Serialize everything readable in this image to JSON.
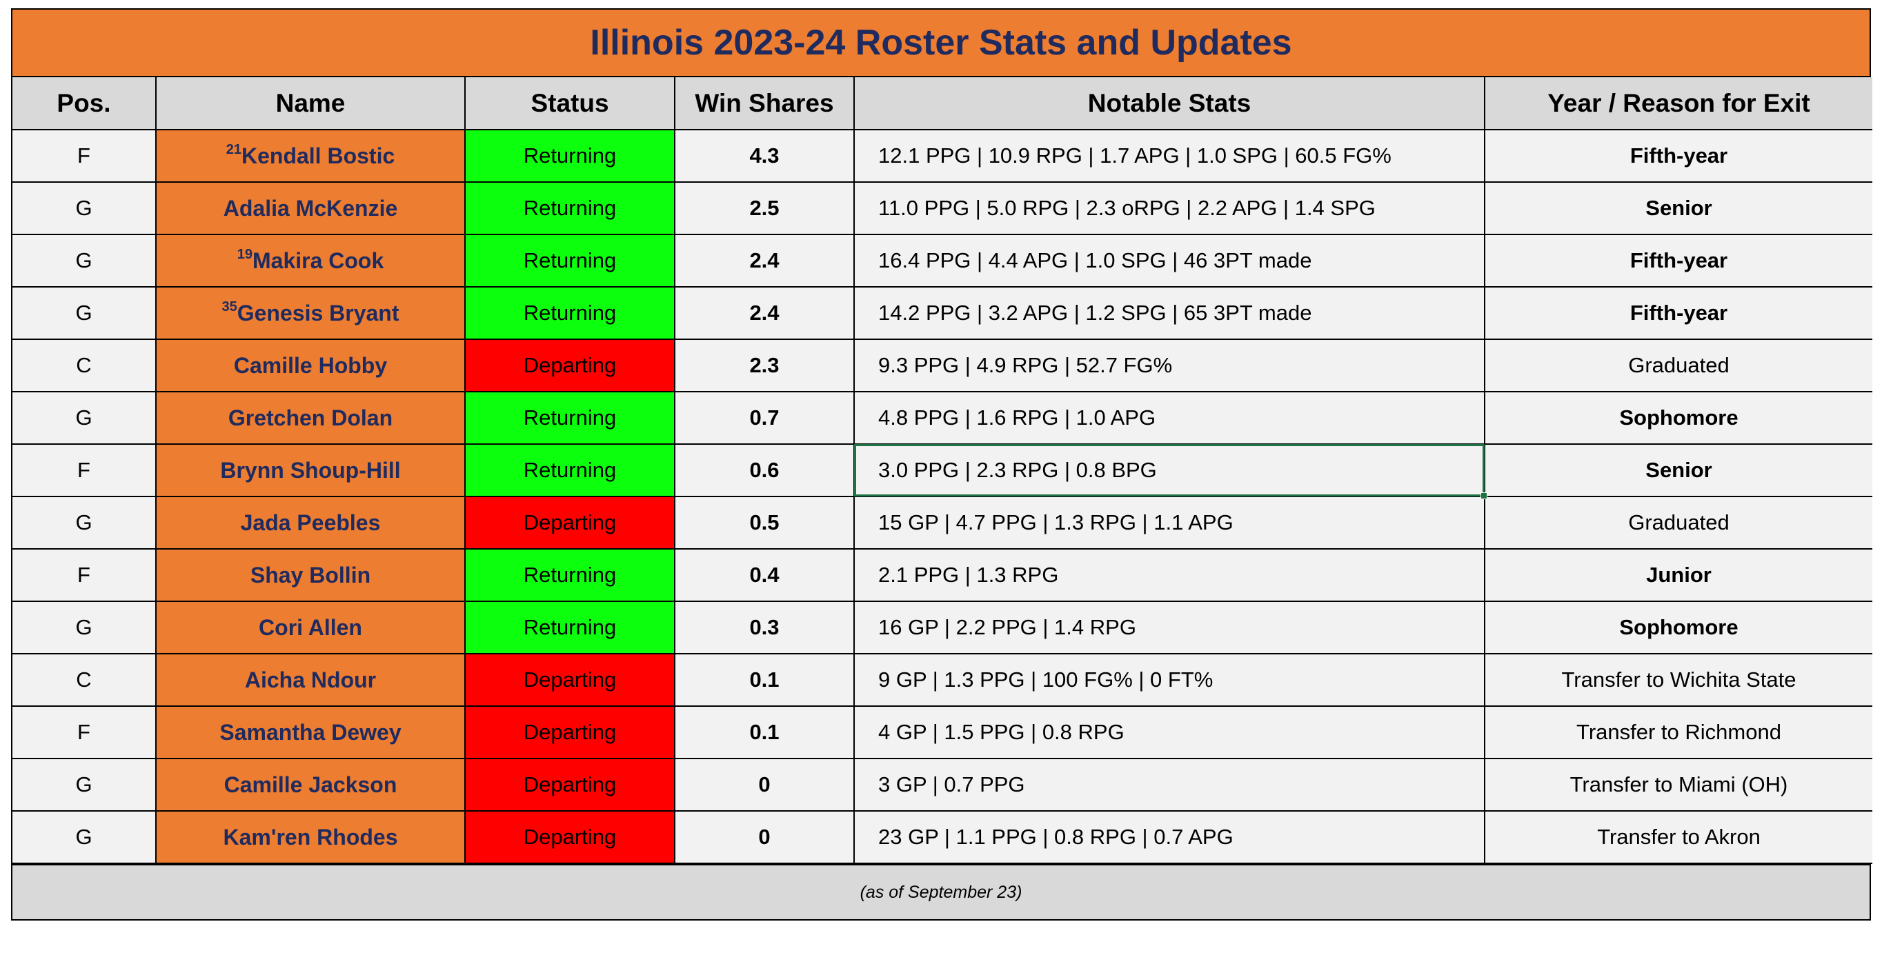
{
  "title": "Illinois 2023-24 Roster Stats and Updates",
  "columns": [
    "Pos.",
    "Name",
    "Status",
    "Win Shares",
    "Notable Stats",
    "Year / Reason for Exit"
  ],
  "rows": [
    {
      "pos": "F",
      "jersey": "21",
      "name": "Kendall Bostic",
      "status": "Returning",
      "ws": "4.3",
      "stats": "12.1 PPG | 10.9 RPG | 1.7 APG | 1.0 SPG | 60.5 FG%",
      "exit": "Fifth-year"
    },
    {
      "pos": "G",
      "jersey": "",
      "name": "Adalia McKenzie",
      "status": "Returning",
      "ws": "2.5",
      "stats": "11.0 PPG | 5.0 RPG | 2.3 oRPG | 2.2 APG | 1.4 SPG",
      "exit": "Senior"
    },
    {
      "pos": "G",
      "jersey": "19",
      "name": "Makira Cook",
      "status": "Returning",
      "ws": "2.4",
      "stats": "16.4 PPG | 4.4 APG | 1.0 SPG | 46 3PT made",
      "exit": "Fifth-year"
    },
    {
      "pos": "G",
      "jersey": "35",
      "name": "Genesis Bryant",
      "status": "Returning",
      "ws": "2.4",
      "stats": "14.2 PPG | 3.2 APG | 1.2 SPG | 65 3PT made",
      "exit": "Fifth-year"
    },
    {
      "pos": "C",
      "jersey": "",
      "name": "Camille Hobby",
      "status": "Departing",
      "ws": "2.3",
      "stats": "9.3 PPG | 4.9 RPG | 52.7 FG%",
      "exit": "Graduated"
    },
    {
      "pos": "G",
      "jersey": "",
      "name": "Gretchen Dolan",
      "status": "Returning",
      "ws": "0.7",
      "stats": "4.8 PPG | 1.6 RPG | 1.0 APG",
      "exit": "Sophomore"
    },
    {
      "pos": "F",
      "jersey": "",
      "name": "Brynn Shoup-Hill",
      "status": "Returning",
      "ws": "0.6",
      "stats": "3.0 PPG | 2.3 RPG | 0.8 BPG",
      "exit": "Senior"
    },
    {
      "pos": "G",
      "jersey": "",
      "name": "Jada Peebles",
      "status": "Departing",
      "ws": "0.5",
      "stats": "15 GP | 4.7 PPG | 1.3 RPG | 1.1 APG",
      "exit": "Graduated"
    },
    {
      "pos": "F",
      "jersey": "",
      "name": "Shay Bollin",
      "status": "Returning",
      "ws": "0.4",
      "stats": "2.1 PPG | 1.3 RPG",
      "exit": "Junior"
    },
    {
      "pos": "G",
      "jersey": "",
      "name": "Cori Allen",
      "status": "Returning",
      "ws": "0.3",
      "stats": "16 GP | 2.2 PPG | 1.4 RPG",
      "exit": "Sophomore"
    },
    {
      "pos": "C",
      "jersey": "",
      "name": "Aicha Ndour",
      "status": "Departing",
      "ws": "0.1",
      "stats": "9 GP | 1.3 PPG | 100 FG% | 0 FT%",
      "exit": "Transfer to Wichita State"
    },
    {
      "pos": "F",
      "jersey": "",
      "name": "Samantha Dewey",
      "status": "Departing",
      "ws": "0.1",
      "stats": "4 GP | 1.5 PPG | 0.8 RPG",
      "exit": "Transfer to Richmond"
    },
    {
      "pos": "G",
      "jersey": "",
      "name": "Camille Jackson",
      "status": "Departing",
      "ws": "0",
      "stats": "3 GP | 0.7 PPG",
      "exit": "Transfer to Miami (OH)"
    },
    {
      "pos": "G",
      "jersey": "",
      "name": "Kam'ren Rhodes",
      "status": "Departing",
      "ws": "0",
      "stats": "23 GP | 1.1 PPG | 0.8 RPG | 0.7 APG",
      "exit": "Transfer to Akron"
    }
  ],
  "footer": "(as of September 23)",
  "colors": {
    "title_bg": "#ED7D31",
    "title_text": "#1F2A5E",
    "returning": "#0CFF0C",
    "departing": "#FF0000",
    "header_bg": "#D9D9D9"
  }
}
